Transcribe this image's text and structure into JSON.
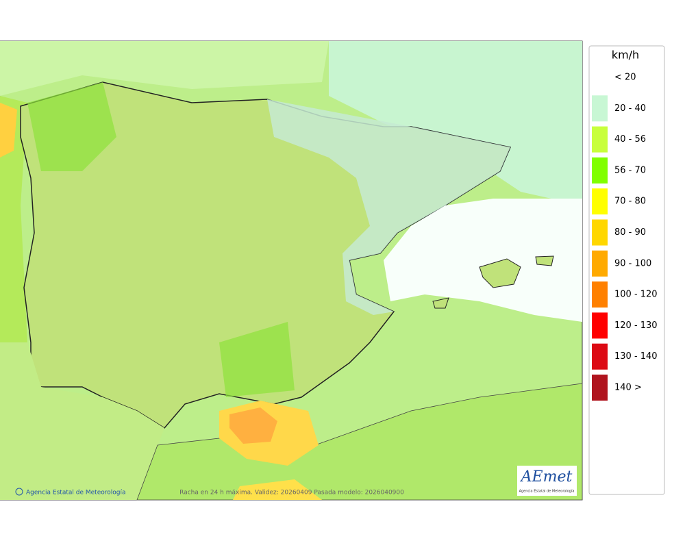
{
  "legend": {
    "title": "km/h",
    "items": [
      {
        "label": "< 20",
        "color": "#ffffff"
      },
      {
        "label": "20 - 40",
        "color": "#c8f7d4"
      },
      {
        "label": "40 - 56",
        "color": "#c8ff3c"
      },
      {
        "label": "56 - 70",
        "color": "#80ff00"
      },
      {
        "label": "70 - 80",
        "color": "#ffff00"
      },
      {
        "label": "80 - 90",
        "color": "#ffd700"
      },
      {
        "label": "90 - 100",
        "color": "#ffaa00"
      },
      {
        "label": "100 - 120",
        "color": "#ff8000"
      },
      {
        "label": "120 - 130",
        "color": "#ff0000"
      },
      {
        "label": "130 - 140",
        "color": "#dc0a14"
      },
      {
        "label": "140 >",
        "color": "#b0141e"
      }
    ]
  },
  "footer": {
    "credit": "Agencia Estatal de Meteorología",
    "caption": "Racha en 24 h máxima. Validez: 20260409 Pasada modelo: 2026040900"
  },
  "logo": {
    "name": "AEmet",
    "subtitle": "Agencia Estatal de Meteorología"
  }
}
